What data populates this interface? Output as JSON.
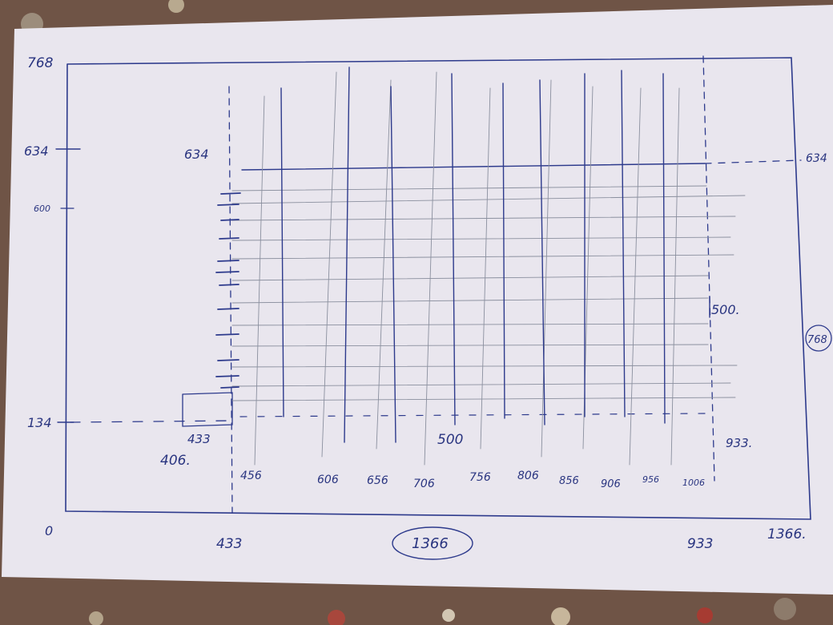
{
  "drawing": {
    "outer_top_left": "768",
    "origin": "0",
    "outer_bottom_right": "1366.",
    "outer_bottom_center": "1366",
    "outer_right_circled": "768",
    "y_634_left": "634",
    "y_634_right": "634",
    "y_600_left": "600",
    "y_134_left": "134",
    "inner_top_label": "634",
    "inner_corner_label": "433",
    "inner_bottom_left": "406.",
    "inner_mid_right": "500.",
    "inner_bottom_mid": "500",
    "inner_bottom_right": "933.",
    "x_bottom_433": "433",
    "x_bottom_933": "933",
    "x_ticks": [
      "456",
      "606",
      "656",
      "706",
      "756",
      "806",
      "856",
      "906",
      "956",
      "1006"
    ]
  }
}
